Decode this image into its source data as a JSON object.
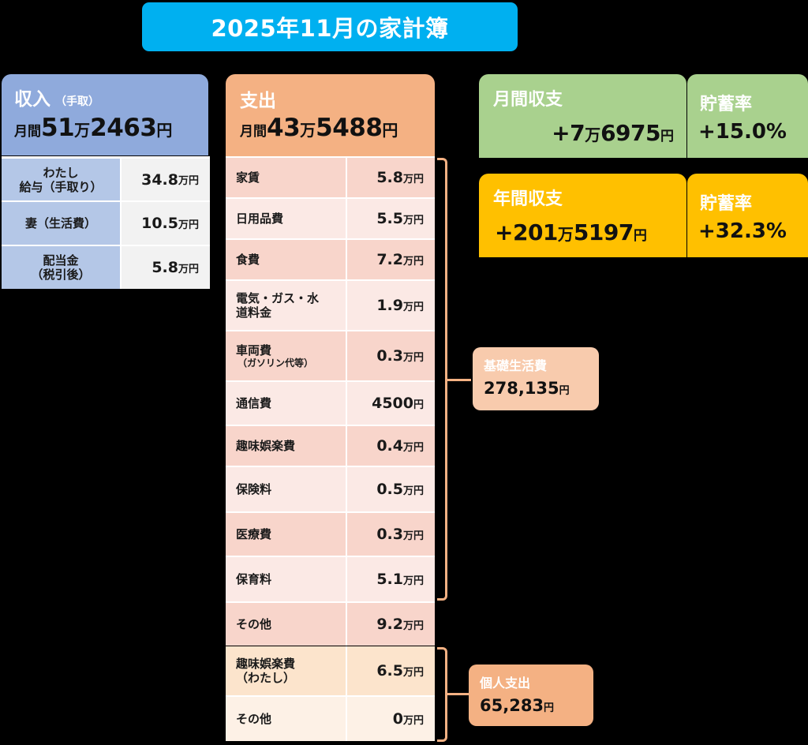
{
  "title": "2025年11月の家計簿",
  "colors": {
    "title_bg": "#00b0f0",
    "income_header": "#8faadc",
    "income_label": "#b4c7e7",
    "expense_header": "#f4b183",
    "monthly_balance": "#a9d18e",
    "annual_balance": "#ffc000"
  },
  "income": {
    "title": "収入",
    "subtitle": "（手取）",
    "total_prefix": "月間",
    "total_man": "51",
    "man_unit": "万",
    "total_rest": "2463",
    "yen_unit": "円",
    "items": [
      {
        "label": "わたし\n給与（手取り）",
        "value": "34.8",
        "unit": "万円"
      },
      {
        "label": "妻（生活費）",
        "value": "10.5",
        "unit": "万円"
      },
      {
        "label": "配当金\n（税引後）",
        "value": "5.8",
        "unit": "万円"
      }
    ]
  },
  "expense": {
    "title": "支出",
    "total_prefix": "月間",
    "total_man": "43",
    "man_unit": "万",
    "total_rest": "5488",
    "yen_unit": "円",
    "basic_items": [
      {
        "label": "家賃",
        "note": "",
        "value": "5.8",
        "unit": "万円"
      },
      {
        "label": "日用品費",
        "note": "",
        "value": "5.5",
        "unit": "万円"
      },
      {
        "label": "食費",
        "note": "",
        "value": "7.2",
        "unit": "万円"
      },
      {
        "label": "電気・ガス・水",
        "note": "道料金",
        "value": "1.9",
        "unit": "万円"
      },
      {
        "label": "車両費",
        "note": "（ガソリン代等）",
        "value": "0.3",
        "unit": "万円"
      },
      {
        "label": "通信費",
        "note": "",
        "value": "4500",
        "unit": "円"
      },
      {
        "label": "趣味娯楽費",
        "note": "",
        "value": "0.4",
        "unit": "万円"
      },
      {
        "label": "保険料",
        "note": "",
        "value": "0.5",
        "unit": "万円"
      },
      {
        "label": "医療費",
        "note": "",
        "value": "0.3",
        "unit": "万円"
      },
      {
        "label": "保育料",
        "note": "",
        "value": "5.1",
        "unit": "万円"
      },
      {
        "label": "その他",
        "note": "",
        "value": "9.2",
        "unit": "万円"
      }
    ],
    "personal_items": [
      {
        "label": "趣味娯楽費",
        "note": "（わたし）",
        "value": "6.5",
        "unit": "万円"
      },
      {
        "label": "その他",
        "note": "",
        "value": "0",
        "unit": "万円"
      }
    ]
  },
  "basic_living": {
    "label": "基礎生活費",
    "value": "278,135",
    "unit": "円"
  },
  "personal_spending": {
    "label": "個人支出",
    "value": "65,283",
    "unit": "円"
  },
  "monthly_balance": {
    "title": "月間収支",
    "value_prefix": "+7",
    "man_unit": "万",
    "value_rest": "6975",
    "yen_unit": "円",
    "savings_title": "貯蓄率",
    "savings_rate": "+15.0%"
  },
  "annual_balance": {
    "title": "年間収支",
    "value_prefix": "+201",
    "man_unit": "万",
    "value_rest": "5197",
    "yen_unit": "円",
    "savings_title": "貯蓄率",
    "savings_rate": "+32.3%"
  }
}
